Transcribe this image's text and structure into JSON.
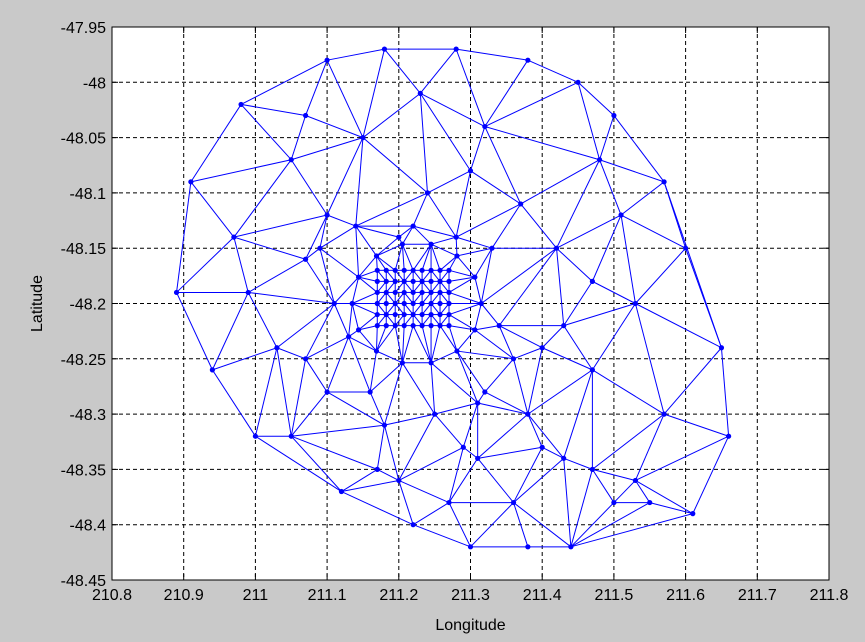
{
  "window": {
    "background": "#c9c9c9"
  },
  "chart_data": {
    "type": "scatter",
    "title": "",
    "xlabel": "Longitude",
    "ylabel": "Latitude",
    "xlim": [
      210.8,
      211.8
    ],
    "ylim": [
      -48.45,
      -47.95
    ],
    "xticks": [
      "210.8",
      "210.9",
      "211",
      "211.1",
      "211.2",
      "211.3",
      "211.4",
      "211.5",
      "211.6",
      "211.7",
      "211.8"
    ],
    "yticks": [
      "-47.95",
      "-48",
      "-48.05",
      "-48.1",
      "-48.15",
      "-48.2",
      "-48.25",
      "-48.3",
      "-48.35",
      "-48.4",
      "-48.45"
    ],
    "grid": true,
    "grid_style": "dashed",
    "color": "#0000ff",
    "marker": "dot",
    "series": [
      {
        "x": [
          211.18,
          211.28,
          211.1,
          211.38,
          211.23,
          211.45,
          210.98,
          211.32,
          211.5,
          211.07,
          211.15,
          211.3,
          210.91,
          211.05,
          211.24,
          211.48,
          211.57,
          211.1,
          211.37,
          211.2,
          211.51,
          210.97,
          211.33,
          211.42,
          211.6,
          211.07,
          211.47,
          210.89,
          210.99,
          211.53,
          211.03,
          210.94,
          211.0,
          211.12,
          211.29,
          211.4,
          211.5,
          211.57,
          211.65,
          211.66,
          211.1,
          211.17,
          211.22,
          211.3,
          211.38,
          211.44,
          211.55,
          211.61,
          211.05,
          211.07,
          211.11,
          211.13,
          211.16,
          211.32,
          211.34,
          211.36,
          211.38,
          211.4,
          211.43,
          211.47,
          211.53,
          211.09,
          211.14,
          211.22,
          211.28,
          211.18,
          211.2,
          211.27,
          211.31,
          211.36,
          211.43,
          211.47,
          211.31,
          211.25
        ],
        "y": [
          -47.97,
          -47.97,
          -47.98,
          -47.98,
          -48.01,
          -48.0,
          -48.02,
          -48.04,
          -48.03,
          -48.03,
          -48.05,
          -48.08,
          -48.09,
          -48.07,
          -48.1,
          -48.07,
          -48.09,
          -48.12,
          -48.11,
          -48.14,
          -48.12,
          -48.14,
          -48.15,
          -48.15,
          -48.15,
          -48.16,
          -48.18,
          -48.19,
          -48.19,
          -48.2,
          -48.24,
          -48.26,
          -48.32,
          -48.37,
          -48.33,
          -48.33,
          -48.38,
          -48.3,
          -48.24,
          -48.32,
          -48.28,
          -48.35,
          -48.4,
          -48.42,
          -48.42,
          -48.42,
          -48.38,
          -48.39,
          -48.32,
          -48.25,
          -48.2,
          -48.23,
          -48.28,
          -48.28,
          -48.22,
          -48.25,
          -48.3,
          -48.24,
          -48.22,
          -48.26,
          -48.36,
          -48.15,
          -48.13,
          -48.13,
          -48.14,
          -48.31,
          -48.36,
          -48.38,
          -48.34,
          -48.38,
          -48.34,
          -48.35,
          -48.29,
          -48.3
        ]
      }
    ],
    "mesh_region": {
      "x": [
        211.17,
        211.27
      ],
      "y": [
        -48.22,
        -48.17
      ]
    }
  }
}
